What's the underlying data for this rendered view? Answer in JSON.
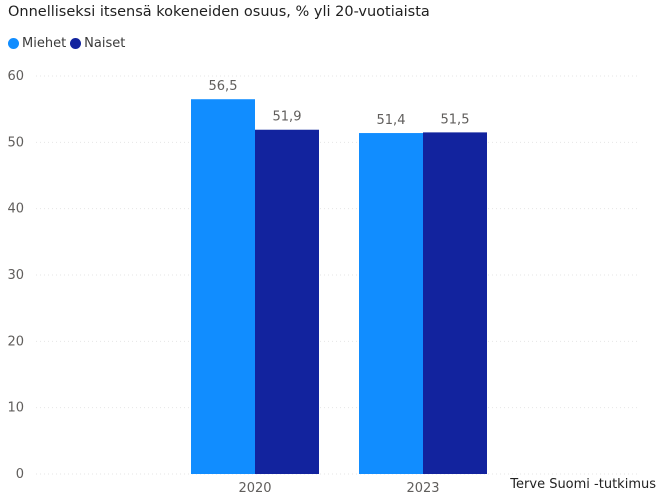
{
  "title": "Onnelliseksi itsensä kokeneiden osuus, % yli 20-vuotiaista",
  "source": "Terve Suomi -tutkimus",
  "colors": {
    "miehet": "#118DFF",
    "naiset": "#12239E",
    "grid": "#e6e6e6",
    "axis_text": "#605E5C",
    "label_text": "#605E5C"
  },
  "chart_data": {
    "type": "bar",
    "categories": [
      "2020",
      "2023"
    ],
    "series": [
      {
        "name": "Miehet",
        "values": [
          56.5,
          51.4
        ],
        "value_labels": [
          "56,5",
          "51,4"
        ]
      },
      {
        "name": "Naiset",
        "values": [
          51.9,
          51.5
        ],
        "value_labels": [
          "51,9",
          "51,5"
        ]
      }
    ],
    "ylim": [
      0,
      60
    ],
    "yticks": [
      "0",
      "10",
      "20",
      "30",
      "40",
      "50",
      "60"
    ],
    "grid": true,
    "legend": "top-left"
  }
}
